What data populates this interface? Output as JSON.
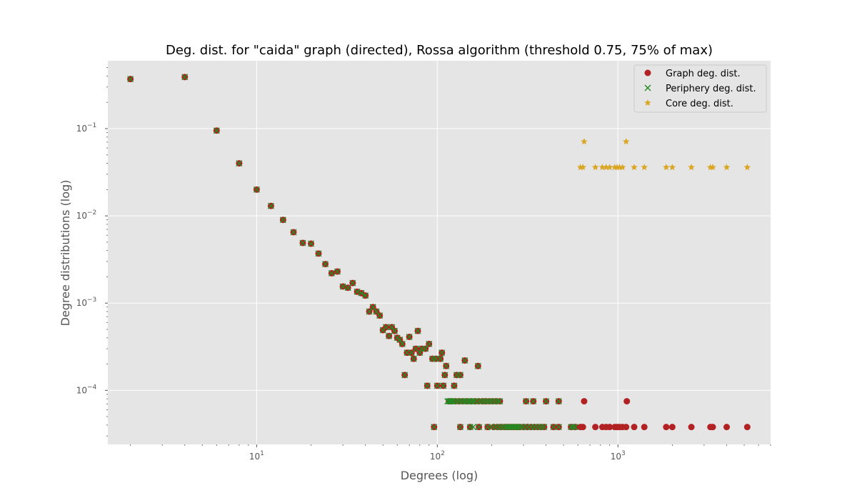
{
  "chart_data": {
    "type": "scatter",
    "title": "Deg. dist. for \"caida\" graph (directed), Rossa algorithm (threshold 0.75, 75% of max)",
    "xlabel": "Degrees (log)",
    "ylabel": "Degree distributions (log)",
    "xscale": "log",
    "yscale": "log",
    "xlim": [
      1.5,
      7000
    ],
    "ylim": [
      2.4e-05,
      0.6
    ],
    "grid": true,
    "legend_position": "top-right",
    "x_tick_labels": [
      {
        "value": 10,
        "base": "10",
        "exp": "1"
      },
      {
        "value": 100,
        "base": "10",
        "exp": "2"
      },
      {
        "value": 1000,
        "base": "10",
        "exp": "3"
      }
    ],
    "y_tick_labels": [
      {
        "value": 0.0001,
        "base": "10",
        "exp": "−4"
      },
      {
        "value": 0.001,
        "base": "10",
        "exp": "−3"
      },
      {
        "value": 0.01,
        "base": "10",
        "exp": "−2"
      },
      {
        "value": 0.1,
        "base": "10",
        "exp": "−1"
      }
    ],
    "series": [
      {
        "name": "Graph deg. dist.",
        "marker": "circle",
        "color": "#b22222",
        "points": [
          [
            2,
            0.37
          ],
          [
            4,
            0.39
          ],
          [
            6,
            0.095
          ],
          [
            8,
            0.04
          ],
          [
            10,
            0.02
          ],
          [
            12,
            0.013
          ],
          [
            14,
            0.009
          ],
          [
            16,
            0.0065
          ],
          [
            18,
            0.0049
          ],
          [
            20,
            0.0048
          ],
          [
            22,
            0.0037
          ],
          [
            24,
            0.0028
          ],
          [
            26,
            0.0022
          ],
          [
            28,
            0.0023
          ],
          [
            30,
            0.00155
          ],
          [
            32,
            0.0015
          ],
          [
            34,
            0.0017
          ],
          [
            36,
            0.00135
          ],
          [
            38,
            0.0013
          ],
          [
            40,
            0.00122
          ],
          [
            42,
            0.0008
          ],
          [
            44,
            0.0009
          ],
          [
            46,
            0.0008
          ],
          [
            48,
            0.00072
          ],
          [
            50,
            0.00049
          ],
          [
            52,
            0.00053
          ],
          [
            54,
            0.00042
          ],
          [
            56,
            0.00053
          ],
          [
            58,
            0.00048
          ],
          [
            60,
            0.0004
          ],
          [
            62,
            0.00038
          ],
          [
            64,
            0.00034
          ],
          [
            66,
            0.00015
          ],
          [
            68,
            0.00027
          ],
          [
            70,
            0.00041
          ],
          [
            72,
            0.00027
          ],
          [
            74,
            0.00023
          ],
          [
            76,
            0.0003
          ],
          [
            78,
            0.00048
          ],
          [
            80,
            0.00027
          ],
          [
            82,
            0.0003
          ],
          [
            86,
            0.0003
          ],
          [
            88,
            0.000113
          ],
          [
            90,
            0.00034
          ],
          [
            94,
            0.00023
          ],
          [
            98,
            0.00023
          ],
          [
            100,
            0.000113
          ],
          [
            104,
            0.00023
          ],
          [
            106,
            0.00027
          ],
          [
            108,
            0.000113
          ],
          [
            110,
            0.00015
          ],
          [
            112,
            0.00019
          ],
          [
            124,
            0.000113
          ],
          [
            128,
            0.00015
          ],
          [
            134,
            0.00015
          ],
          [
            142,
            0.00022
          ],
          [
            168,
            0.00019
          ],
          [
            116,
            7.5e-05
          ],
          [
            120,
            7.5e-05
          ],
          [
            126,
            7.5e-05
          ],
          [
            132,
            7.5e-05
          ],
          [
            138,
            7.5e-05
          ],
          [
            146,
            7.5e-05
          ],
          [
            154,
            7.5e-05
          ],
          [
            162,
            7.5e-05
          ],
          [
            170,
            7.5e-05
          ],
          [
            178,
            7.5e-05
          ],
          [
            186,
            7.5e-05
          ],
          [
            194,
            7.5e-05
          ],
          [
            202,
            7.5e-05
          ],
          [
            212,
            7.5e-05
          ],
          [
            222,
            7.5e-05
          ],
          [
            310,
            7.5e-05
          ],
          [
            340,
            7.5e-05
          ],
          [
            400,
            7.5e-05
          ],
          [
            470,
            7.5e-05
          ],
          [
            650,
            7.5e-05
          ],
          [
            1120,
            7.5e-05
          ],
          [
            96,
            3.8e-05
          ],
          [
            134,
            3.8e-05
          ],
          [
            152,
            3.8e-05
          ],
          [
            170,
            3.8e-05
          ],
          [
            190,
            3.8e-05
          ],
          [
            205,
            3.8e-05
          ],
          [
            215,
            3.8e-05
          ],
          [
            225,
            3.8e-05
          ],
          [
            235,
            3.8e-05
          ],
          [
            245,
            3.8e-05
          ],
          [
            255,
            3.8e-05
          ],
          [
            265,
            3.8e-05
          ],
          [
            275,
            3.8e-05
          ],
          [
            285,
            3.8e-05
          ],
          [
            300,
            3.8e-05
          ],
          [
            315,
            3.8e-05
          ],
          [
            330,
            3.8e-05
          ],
          [
            345,
            3.8e-05
          ],
          [
            360,
            3.8e-05
          ],
          [
            375,
            3.8e-05
          ],
          [
            390,
            3.8e-05
          ],
          [
            440,
            3.8e-05
          ],
          [
            470,
            3.8e-05
          ],
          [
            550,
            3.8e-05
          ],
          [
            580,
            3.8e-05
          ],
          [
            620,
            3.8e-05
          ],
          [
            640,
            3.8e-05
          ],
          [
            750,
            3.8e-05
          ],
          [
            820,
            3.8e-05
          ],
          [
            860,
            3.8e-05
          ],
          [
            900,
            3.8e-05
          ],
          [
            960,
            3.8e-05
          ],
          [
            990,
            3.8e-05
          ],
          [
            1020,
            3.8e-05
          ],
          [
            1060,
            3.8e-05
          ],
          [
            1110,
            3.8e-05
          ],
          [
            1230,
            3.8e-05
          ],
          [
            1400,
            3.8e-05
          ],
          [
            1850,
            3.8e-05
          ],
          [
            2000,
            3.8e-05
          ],
          [
            2550,
            3.8e-05
          ],
          [
            3250,
            3.8e-05
          ],
          [
            3350,
            3.8e-05
          ],
          [
            4000,
            3.8e-05
          ],
          [
            5200,
            3.8e-05
          ]
        ]
      },
      {
        "name": "Periphery deg. dist.",
        "marker": "x",
        "color": "#228b22",
        "points": [
          [
            2,
            0.37
          ],
          [
            4,
            0.39
          ],
          [
            6,
            0.095
          ],
          [
            8,
            0.04
          ],
          [
            10,
            0.02
          ],
          [
            12,
            0.013
          ],
          [
            14,
            0.009
          ],
          [
            16,
            0.0065
          ],
          [
            18,
            0.0049
          ],
          [
            20,
            0.0048
          ],
          [
            22,
            0.0037
          ],
          [
            24,
            0.0028
          ],
          [
            26,
            0.0022
          ],
          [
            28,
            0.0023
          ],
          [
            30,
            0.00155
          ],
          [
            32,
            0.0015
          ],
          [
            34,
            0.0017
          ],
          [
            36,
            0.00135
          ],
          [
            38,
            0.0013
          ],
          [
            40,
            0.00122
          ],
          [
            42,
            0.0008
          ],
          [
            44,
            0.0009
          ],
          [
            46,
            0.0008
          ],
          [
            48,
            0.00072
          ],
          [
            50,
            0.00049
          ],
          [
            52,
            0.00053
          ],
          [
            54,
            0.00042
          ],
          [
            56,
            0.00053
          ],
          [
            58,
            0.00048
          ],
          [
            60,
            0.0004
          ],
          [
            62,
            0.00038
          ],
          [
            64,
            0.00034
          ],
          [
            66,
            0.00015
          ],
          [
            68,
            0.00027
          ],
          [
            70,
            0.00041
          ],
          [
            72,
            0.00027
          ],
          [
            74,
            0.00023
          ],
          [
            76,
            0.0003
          ],
          [
            78,
            0.00048
          ],
          [
            80,
            0.00027
          ],
          [
            82,
            0.0003
          ],
          [
            86,
            0.0003
          ],
          [
            88,
            0.000113
          ],
          [
            90,
            0.00034
          ],
          [
            94,
            0.00023
          ],
          [
            98,
            0.00023
          ],
          [
            100,
            0.000113
          ],
          [
            104,
            0.00023
          ],
          [
            106,
            0.00027
          ],
          [
            108,
            0.000113
          ],
          [
            110,
            0.00015
          ],
          [
            112,
            0.00019
          ],
          [
            124,
            0.000113
          ],
          [
            128,
            0.00015
          ],
          [
            134,
            0.00015
          ],
          [
            142,
            0.00022
          ],
          [
            168,
            0.00019
          ],
          [
            114,
            7.5e-05
          ],
          [
            116,
            7.5e-05
          ],
          [
            118,
            7.5e-05
          ],
          [
            120,
            7.5e-05
          ],
          [
            122,
            7.5e-05
          ],
          [
            126,
            7.5e-05
          ],
          [
            130,
            7.5e-05
          ],
          [
            134,
            7.5e-05
          ],
          [
            138,
            7.5e-05
          ],
          [
            142,
            7.5e-05
          ],
          [
            146,
            7.5e-05
          ],
          [
            150,
            7.5e-05
          ],
          [
            154,
            7.5e-05
          ],
          [
            158,
            7.5e-05
          ],
          [
            162,
            7.5e-05
          ],
          [
            170,
            7.5e-05
          ],
          [
            176,
            7.5e-05
          ],
          [
            182,
            7.5e-05
          ],
          [
            188,
            7.5e-05
          ],
          [
            194,
            7.5e-05
          ],
          [
            200,
            7.5e-05
          ],
          [
            208,
            7.5e-05
          ],
          [
            216,
            7.5e-05
          ],
          [
            222,
            7.5e-05
          ],
          [
            310,
            7.5e-05
          ],
          [
            340,
            7.5e-05
          ],
          [
            400,
            7.5e-05
          ],
          [
            470,
            7.5e-05
          ],
          [
            96,
            3.8e-05
          ],
          [
            134,
            3.8e-05
          ],
          [
            152,
            3.8e-05
          ],
          [
            158,
            3.8e-05
          ],
          [
            170,
            3.8e-05
          ],
          [
            190,
            3.8e-05
          ],
          [
            200,
            3.8e-05
          ],
          [
            210,
            3.8e-05
          ],
          [
            220,
            3.8e-05
          ],
          [
            228,
            3.8e-05
          ],
          [
            236,
            3.8e-05
          ],
          [
            242,
            3.8e-05
          ],
          [
            248,
            3.8e-05
          ],
          [
            252,
            3.8e-05
          ],
          [
            258,
            3.8e-05
          ],
          [
            264,
            3.8e-05
          ],
          [
            270,
            3.8e-05
          ],
          [
            276,
            3.8e-05
          ],
          [
            282,
            3.8e-05
          ],
          [
            290,
            3.8e-05
          ],
          [
            300,
            3.8e-05
          ],
          [
            315,
            3.8e-05
          ],
          [
            330,
            3.8e-05
          ],
          [
            345,
            3.8e-05
          ],
          [
            360,
            3.8e-05
          ],
          [
            375,
            3.8e-05
          ],
          [
            390,
            3.8e-05
          ],
          [
            440,
            3.8e-05
          ],
          [
            470,
            3.8e-05
          ],
          [
            550,
            3.8e-05
          ],
          [
            565,
            3.8e-05
          ],
          [
            580,
            3.8e-05
          ]
        ]
      },
      {
        "name": "Core deg. dist.",
        "marker": "star",
        "color": "#daa520",
        "points": [
          [
            620,
            0.036
          ],
          [
            640,
            0.036
          ],
          [
            650,
            0.071
          ],
          [
            750,
            0.036
          ],
          [
            820,
            0.036
          ],
          [
            860,
            0.036
          ],
          [
            900,
            0.036
          ],
          [
            960,
            0.036
          ],
          [
            990,
            0.036
          ],
          [
            1020,
            0.036
          ],
          [
            1060,
            0.036
          ],
          [
            1110,
            0.071
          ],
          [
            1230,
            0.036
          ],
          [
            1400,
            0.036
          ],
          [
            1850,
            0.036
          ],
          [
            2000,
            0.036
          ],
          [
            2550,
            0.036
          ],
          [
            3250,
            0.036
          ],
          [
            3350,
            0.036
          ],
          [
            4000,
            0.036
          ],
          [
            5200,
            0.036
          ]
        ]
      }
    ]
  }
}
